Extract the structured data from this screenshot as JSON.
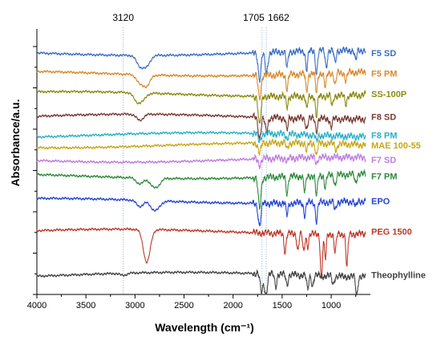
{
  "chart_data": {
    "type": "line",
    "xlabel": "Wavelength (cm⁻¹)",
    "ylabel": "Absorbance/a.u.",
    "xlim": [
      4000,
      600
    ],
    "x_reversed": true,
    "x_ticks": [
      4000,
      3500,
      3000,
      2500,
      2000,
      1500,
      1000
    ],
    "x_tick_labels": [
      "4000",
      "3500",
      "3000",
      "2500",
      "2000",
      "1500",
      "1000"
    ],
    "y_tick_labels_shown": false,
    "reference_lines": [
      {
        "x": 3120,
        "label": "3120"
      },
      {
        "x": 1705,
        "label": "1705"
      },
      {
        "x": 1662,
        "label": "1662"
      }
    ],
    "series": [
      {
        "name": "F5 SD",
        "color": "#3b6fc4",
        "offset": 10.0,
        "features": [
          {
            "x": 2950,
            "d": 0.5
          },
          {
            "x": 2880,
            "d": 0.5
          },
          {
            "x": 1730,
            "d": 1.3
          },
          {
            "x": 1660,
            "d": 1.0
          },
          {
            "x": 1450,
            "d": 0.8
          },
          {
            "x": 1250,
            "d": 0.9
          },
          {
            "x": 1150,
            "d": 1.1
          },
          {
            "x": 1050,
            "d": 0.8
          },
          {
            "x": 960,
            "d": 0.6
          },
          {
            "x": 750,
            "d": 0.5
          }
        ]
      },
      {
        "name": "F5 PM",
        "color": "#d98a2b",
        "offset": 9.0,
        "features": [
          {
            "x": 2950,
            "d": 0.4
          },
          {
            "x": 2880,
            "d": 0.5
          },
          {
            "x": 1730,
            "d": 1.1
          },
          {
            "x": 1450,
            "d": 0.7
          },
          {
            "x": 1250,
            "d": 0.8
          },
          {
            "x": 1150,
            "d": 0.9
          },
          {
            "x": 1060,
            "d": 0.7
          },
          {
            "x": 960,
            "d": 0.6
          },
          {
            "x": 850,
            "d": 0.4
          }
        ]
      },
      {
        "name": "SS-100P",
        "color": "#8b8b10",
        "offset": 8.0,
        "features": [
          {
            "x": 2980,
            "d": 0.4
          },
          {
            "x": 2920,
            "d": 0.3
          },
          {
            "x": 1730,
            "d": 1.4
          },
          {
            "x": 1450,
            "d": 0.5
          },
          {
            "x": 1250,
            "d": 0.6
          },
          {
            "x": 1150,
            "d": 1.0
          },
          {
            "x": 990,
            "d": 0.5
          },
          {
            "x": 850,
            "d": 0.4
          }
        ]
      },
      {
        "name": "F8 SD",
        "color": "#7a3a32",
        "offset": 6.9,
        "features": [
          {
            "x": 2950,
            "d": 0.3
          },
          {
            "x": 1730,
            "d": 1.0
          },
          {
            "x": 1660,
            "d": 0.7
          },
          {
            "x": 1450,
            "d": 0.6
          },
          {
            "x": 1250,
            "d": 0.5
          },
          {
            "x": 1150,
            "d": 0.6
          },
          {
            "x": 1000,
            "d": 0.4
          }
        ]
      },
      {
        "name": "F8 PM",
        "color": "#2ab1c8",
        "offset": 6.0,
        "features": [
          {
            "x": 1730,
            "d": 0.4
          },
          {
            "x": 1450,
            "d": 0.2
          },
          {
            "x": 1150,
            "d": 0.3
          }
        ]
      },
      {
        "name": "MAE 100-55",
        "color": "#c9a617",
        "offset": 5.5,
        "features": [
          {
            "x": 1730,
            "d": 0.5
          },
          {
            "x": 1450,
            "d": 0.3
          },
          {
            "x": 1250,
            "d": 0.4
          },
          {
            "x": 1150,
            "d": 0.6
          },
          {
            "x": 950,
            "d": 0.3
          }
        ]
      },
      {
        "name": "F7 SD",
        "color": "#c07de0",
        "offset": 4.8,
        "features": [
          {
            "x": 1730,
            "d": 0.3
          },
          {
            "x": 1450,
            "d": 0.2
          },
          {
            "x": 1150,
            "d": 0.3
          }
        ]
      },
      {
        "name": "F7 PM",
        "color": "#2e8b3c",
        "offset": 4.0,
        "features": [
          {
            "x": 2950,
            "d": 0.3
          },
          {
            "x": 2820,
            "d": 0.3
          },
          {
            "x": 2770,
            "d": 0.3
          },
          {
            "x": 1730,
            "d": 1.5
          },
          {
            "x": 1450,
            "d": 0.8
          },
          {
            "x": 1270,
            "d": 0.8
          },
          {
            "x": 1150,
            "d": 1.0
          },
          {
            "x": 1060,
            "d": 0.6
          },
          {
            "x": 960,
            "d": 0.5
          },
          {
            "x": 750,
            "d": 0.4
          }
        ]
      },
      {
        "name": "EPO",
        "color": "#2545d6",
        "offset": 2.8,
        "features": [
          {
            "x": 2950,
            "d": 0.3
          },
          {
            "x": 2820,
            "d": 0.3
          },
          {
            "x": 2770,
            "d": 0.3
          },
          {
            "x": 1730,
            "d": 1.1
          },
          {
            "x": 1450,
            "d": 0.6
          },
          {
            "x": 1270,
            "d": 0.6
          },
          {
            "x": 1150,
            "d": 0.9
          },
          {
            "x": 960,
            "d": 0.4
          },
          {
            "x": 750,
            "d": 0.3
          }
        ]
      },
      {
        "name": "PEG 1500",
        "color": "#c0392b",
        "offset": 1.3,
        "features": [
          {
            "x": 2880,
            "d": 1.6
          },
          {
            "x": 1470,
            "d": 0.9
          },
          {
            "x": 1340,
            "d": 0.8
          },
          {
            "x": 1280,
            "d": 0.9
          },
          {
            "x": 1240,
            "d": 0.6
          },
          {
            "x": 1100,
            "d": 2.2
          },
          {
            "x": 1060,
            "d": 1.2
          },
          {
            "x": 960,
            "d": 0.9
          },
          {
            "x": 840,
            "d": 1.6
          }
        ]
      },
      {
        "name": "Theophylline",
        "color": "#444444",
        "offset": -0.8,
        "features": [
          {
            "x": 3120,
            "d": 0.1
          },
          {
            "x": 1710,
            "d": 0.9
          },
          {
            "x": 1665,
            "d": 1.0
          },
          {
            "x": 1565,
            "d": 0.6
          },
          {
            "x": 1450,
            "d": 0.5
          },
          {
            "x": 1240,
            "d": 0.7
          },
          {
            "x": 1190,
            "d": 0.5
          },
          {
            "x": 980,
            "d": 0.4
          },
          {
            "x": 740,
            "d": 0.9
          }
        ]
      }
    ]
  }
}
